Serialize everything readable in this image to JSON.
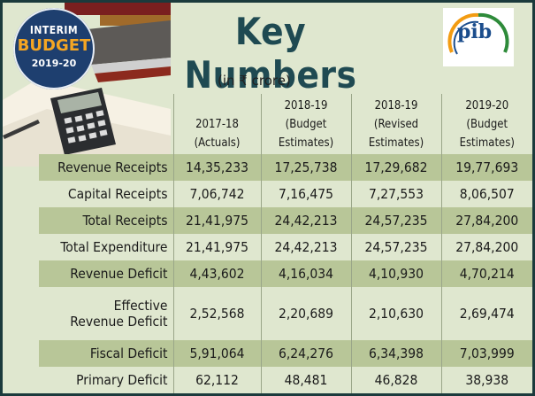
{
  "badge": {
    "line1": "INTERIM",
    "line2": "BUDGET",
    "line3": "2019-20"
  },
  "logo": {
    "text": "pib"
  },
  "title": "Key Numbers",
  "unit": "(in ₹ crore)",
  "columns": [
    {
      "line1": "2017-18",
      "line2": "(Actuals)",
      "line3": ""
    },
    {
      "line1": "2018-19",
      "line2": "(Budget",
      "line3": "Estimates)"
    },
    {
      "line1": "2018-19",
      "line2": "(Revised",
      "line3": "Estimates)"
    },
    {
      "line1": "2019-20",
      "line2": "(Budget",
      "line3": "Estimates)"
    }
  ],
  "rows": [
    {
      "label": "Revenue Receipts",
      "values": [
        "14,35,233",
        "17,25,738",
        "17,29,682",
        "19,77,693"
      ]
    },
    {
      "label": "Capital Receipts",
      "values": [
        "7,06,742",
        "7,16,475",
        "7,27,553",
        "8,06,507"
      ]
    },
    {
      "label": "Total Receipts",
      "values": [
        "21,41,975",
        "24,42,213",
        "24,57,235",
        "27,84,200"
      ]
    },
    {
      "label": "Total Expenditure",
      "values": [
        "21,41,975",
        "24,42,213",
        "24,57,235",
        "27,84,200"
      ]
    },
    {
      "label": "Revenue Deficit",
      "values": [
        "4,43,602",
        "4,16,034",
        "4,10,930",
        "4,70,214"
      ]
    },
    {
      "label": "Effective Revenue Deficit",
      "label_line1": "Effective",
      "label_line2": "Revenue Deficit",
      "values": [
        "2,52,568",
        "2,20,689",
        "2,10,630",
        "2,69,474"
      ]
    },
    {
      "label": "Fiscal Deficit",
      "values": [
        "5,91,064",
        "6,24,276",
        "6,34,398",
        "7,03,999"
      ]
    },
    {
      "label": "Primary Deficit",
      "values": [
        "62,112",
        "48,481",
        "46,828",
        "38,938"
      ]
    }
  ]
}
